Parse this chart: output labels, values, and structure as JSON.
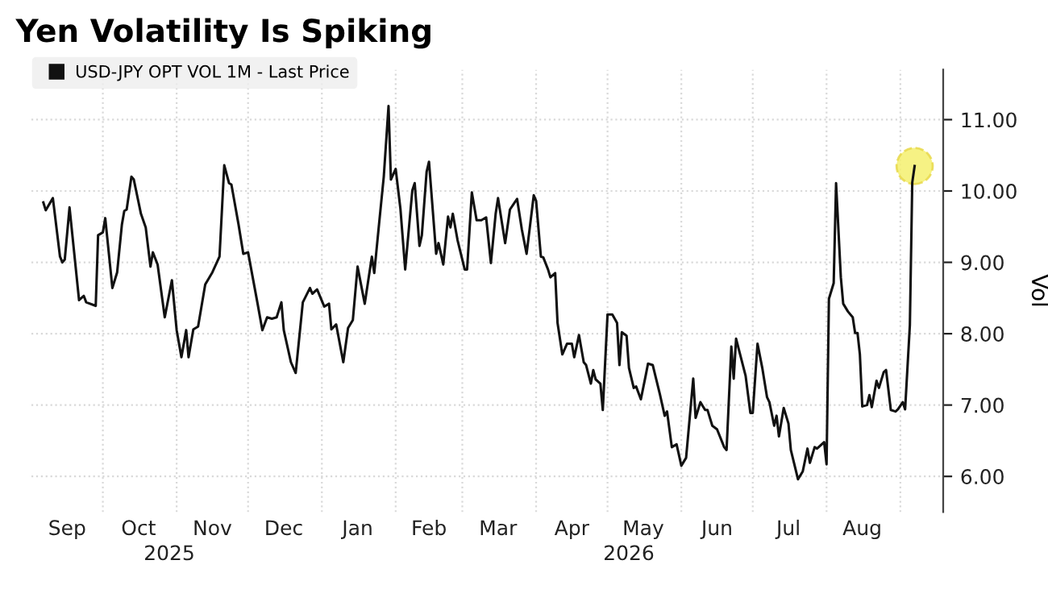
{
  "chart_data": {
    "type": "line",
    "title": "Yen Volatility Is Spiking",
    "ylabel": "Vol",
    "legend": "top left",
    "grid": true,
    "marker": "none",
    "line_style": "solid",
    "xlim": [
      "2025-09-01",
      "2026-09-19"
    ],
    "ylim": [
      5.5,
      11.7
    ],
    "yticks": [
      {
        "value": 6,
        "label": "6.00"
      },
      {
        "value": 7,
        "label": "7.00"
      },
      {
        "value": 8,
        "label": "8.00"
      },
      {
        "value": 9,
        "label": "9.00"
      },
      {
        "value": 10,
        "label": "10.00"
      },
      {
        "value": 11,
        "label": "11.00"
      }
    ],
    "xticks": [
      {
        "value": "2025-10-01",
        "label": null
      },
      {
        "value": "2025-11-01",
        "label": null
      },
      {
        "value": "2025-12-01",
        "label": null
      },
      {
        "value": "2026-01-01",
        "label": null
      },
      {
        "value": "2026-02-01",
        "label": null
      },
      {
        "value": "2026-03-01",
        "label": null
      },
      {
        "value": "2026-04-01",
        "label": null
      },
      {
        "value": "2026-05-01",
        "label": null
      },
      {
        "value": "2026-06-01",
        "label": null
      },
      {
        "value": "2026-07-01",
        "label": null
      },
      {
        "value": "2026-08-01",
        "label": null
      },
      {
        "value": "2026-09-01",
        "label": null
      },
      {
        "value": "2025-09-16",
        "label": "Sep"
      },
      {
        "value": "2025-10-16",
        "label": "Oct"
      },
      {
        "value": "2025-11-16",
        "label": "Nov"
      },
      {
        "value": "2025-12-16",
        "label": "Dec"
      },
      {
        "value": "2026-01-16",
        "label": "Jan"
      },
      {
        "value": "2026-02-15",
        "label": "Feb"
      },
      {
        "value": "2026-03-16",
        "label": "Mar"
      },
      {
        "value": "2026-04-16",
        "label": "Apr"
      },
      {
        "value": "2026-05-16",
        "label": "May"
      },
      {
        "value": "2026-06-16",
        "label": "Jun"
      },
      {
        "value": "2026-07-16",
        "label": "Jul"
      },
      {
        "value": "2026-08-16",
        "label": "Aug"
      }
    ],
    "annotations": [
      "2025",
      "2026"
    ],
    "series": [
      {
        "name": "USD-JPY OPT VOL 1M - Last Price",
        "color": "#111111",
        "x": [
          "2025-09-06",
          "2025-09-07",
          "2025-09-10",
          "2025-09-13",
          "2025-09-14",
          "2025-09-15",
          "2025-09-17",
          "2025-09-21",
          "2025-09-23",
          "2025-09-24",
          "2025-09-28",
          "2025-09-29",
          "2025-10-01",
          "2025-10-02",
          "2025-10-05",
          "2025-10-07",
          "2025-10-09",
          "2025-10-10",
          "2025-10-11",
          "2025-10-13",
          "2025-10-14",
          "2025-10-17",
          "2025-10-19",
          "2025-10-21",
          "2025-10-22",
          "2025-10-24",
          "2025-10-27",
          "2025-10-30",
          "2025-11-01",
          "2025-11-03",
          "2025-11-05",
          "2025-11-06",
          "2025-11-08",
          "2025-11-10",
          "2025-11-13",
          "2025-11-16",
          "2025-11-19",
          "2025-11-21",
          "2025-11-23",
          "2025-11-24",
          "2025-11-27",
          "2025-11-29",
          "2025-12-01",
          "2025-12-05",
          "2025-12-07",
          "2025-12-09",
          "2025-12-11",
          "2025-12-13",
          "2025-12-15",
          "2025-12-16",
          "2025-12-19",
          "2025-12-21",
          "2025-12-24",
          "2025-12-27",
          "2025-12-28",
          "2025-12-30",
          "2026-01-02",
          "2026-01-04",
          "2026-01-05",
          "2026-01-07",
          "2026-01-10",
          "2026-01-12",
          "2026-01-14",
          "2026-01-16",
          "2026-01-19",
          "2026-01-22",
          "2026-01-23",
          "2026-01-25",
          "2026-01-27",
          "2026-01-29",
          "2026-01-30",
          "2026-02-01",
          "2026-02-03",
          "2026-02-05",
          "2026-02-08",
          "2026-02-09",
          "2026-02-11",
          "2026-02-12",
          "2026-02-14",
          "2026-02-15",
          "2026-02-18",
          "2026-02-19",
          "2026-02-21",
          "2026-02-23",
          "2026-02-24",
          "2026-02-25",
          "2026-02-27",
          "2026-03-02",
          "2026-03-03",
          "2026-03-05",
          "2026-03-07",
          "2026-03-09",
          "2026-03-11",
          "2026-03-13",
          "2026-03-15",
          "2026-03-16",
          "2026-03-19",
          "2026-03-21",
          "2026-03-24",
          "2026-03-26",
          "2026-03-28",
          "2026-03-31",
          "2026-04-01",
          "2026-04-03",
          "2026-04-04",
          "2026-04-06",
          "2026-04-07",
          "2026-04-09",
          "2026-04-10",
          "2026-04-12",
          "2026-04-14",
          "2026-04-16",
          "2026-04-17",
          "2026-04-19",
          "2026-04-21",
          "2026-04-22",
          "2026-04-24",
          "2026-04-25",
          "2026-04-26",
          "2026-04-28",
          "2026-04-29",
          "2026-05-01",
          "2026-05-03",
          "2026-05-05",
          "2026-05-06",
          "2026-05-07",
          "2026-05-09",
          "2026-05-10",
          "2026-05-12",
          "2026-05-13",
          "2026-05-15",
          "2026-05-17",
          "2026-05-18",
          "2026-05-20",
          "2026-05-23",
          "2026-05-25",
          "2026-05-26",
          "2026-05-28",
          "2026-05-30",
          "2026-06-01",
          "2026-06-03",
          "2026-06-06",
          "2026-06-07",
          "2026-06-09",
          "2026-06-11",
          "2026-06-12",
          "2026-06-14",
          "2026-06-16",
          "2026-06-19",
          "2026-06-20",
          "2026-06-22",
          "2026-06-23",
          "2026-06-24",
          "2026-06-26",
          "2026-06-28",
          "2026-06-30",
          "2026-07-01",
          "2026-07-03",
          "2026-07-05",
          "2026-07-07",
          "2026-07-08",
          "2026-07-10",
          "2026-07-11",
          "2026-07-12",
          "2026-07-14",
          "2026-07-16",
          "2026-07-17",
          "2026-07-20",
          "2026-07-22",
          "2026-07-24",
          "2026-07-25",
          "2026-07-27",
          "2026-07-28",
          "2026-07-31",
          "2026-08-01",
          "2026-08-02",
          "2026-08-04",
          "2026-08-05",
          "2026-08-07",
          "2026-08-08",
          "2026-08-10",
          "2026-08-12",
          "2026-08-13",
          "2026-08-14",
          "2026-08-15",
          "2026-08-16",
          "2026-08-18",
          "2026-08-19",
          "2026-08-20",
          "2026-08-22",
          "2026-08-23",
          "2026-08-25",
          "2026-08-26",
          "2026-08-28",
          "2026-08-30",
          "2026-08-31",
          "2026-09-02",
          "2026-09-03",
          "2026-09-05",
          "2026-09-06",
          "2026-09-07"
        ],
        "values": [
          9.84,
          9.73,
          9.9,
          9.08,
          9.0,
          9.04,
          9.77,
          8.47,
          8.53,
          8.44,
          8.39,
          9.38,
          9.42,
          9.62,
          8.64,
          8.86,
          9.53,
          9.72,
          9.74,
          10.2,
          10.16,
          9.68,
          9.49,
          8.94,
          9.14,
          8.97,
          8.23,
          8.75,
          8.05,
          7.67,
          8.05,
          7.67,
          8.06,
          8.1,
          8.69,
          8.86,
          9.08,
          10.36,
          10.11,
          10.09,
          9.53,
          9.12,
          9.14,
          8.42,
          8.05,
          8.23,
          8.21,
          8.23,
          8.44,
          8.05,
          7.6,
          7.45,
          8.44,
          8.64,
          8.56,
          8.62,
          8.38,
          8.42,
          8.06,
          8.13,
          7.6,
          8.08,
          8.19,
          8.94,
          8.42,
          9.08,
          8.85,
          9.53,
          10.2,
          11.19,
          10.16,
          10.31,
          9.75,
          8.9,
          10.01,
          10.11,
          9.23,
          9.38,
          10.27,
          10.41,
          9.12,
          9.27,
          8.97,
          9.64,
          9.49,
          9.68,
          9.31,
          8.9,
          8.9,
          9.98,
          9.59,
          9.59,
          9.63,
          8.99,
          9.68,
          9.9,
          9.27,
          9.74,
          9.89,
          9.46,
          9.12,
          9.94,
          9.86,
          9.08,
          9.07,
          8.9,
          8.79,
          8.85,
          8.15,
          7.71,
          7.86,
          7.86,
          7.67,
          7.98,
          7.6,
          7.56,
          7.3,
          7.49,
          7.36,
          7.3,
          6.93,
          8.27,
          8.27,
          8.15,
          7.56,
          8.02,
          7.97,
          7.52,
          7.24,
          7.26,
          7.08,
          7.41,
          7.58,
          7.56,
          7.15,
          6.85,
          6.91,
          6.41,
          6.45,
          6.15,
          6.26,
          7.37,
          6.82,
          7.04,
          6.93,
          6.93,
          6.71,
          6.66,
          6.41,
          6.37,
          7.82,
          7.37,
          7.93,
          7.67,
          7.41,
          6.89,
          6.89,
          7.86,
          7.52,
          7.11,
          7.04,
          6.71,
          6.85,
          6.56,
          6.96,
          6.74,
          6.37,
          5.96,
          6.07,
          6.39,
          6.19,
          6.41,
          6.39,
          6.48,
          6.17,
          8.49,
          8.71,
          10.11,
          8.79,
          8.42,
          8.31,
          8.23,
          8.01,
          8.01,
          7.71,
          6.98,
          7.0,
          7.14,
          6.97,
          7.34,
          7.24,
          7.46,
          7.49,
          6.93,
          6.91,
          6.94,
          7.04,
          6.94,
          8.12,
          10.12,
          10.35
        ]
      },
      {
        "type": "scatter",
        "marker": "circle",
        "color": "#f5f06e",
        "x": [
          "2026-09-07"
        ],
        "values": [
          10.35
        ]
      }
    ]
  }
}
